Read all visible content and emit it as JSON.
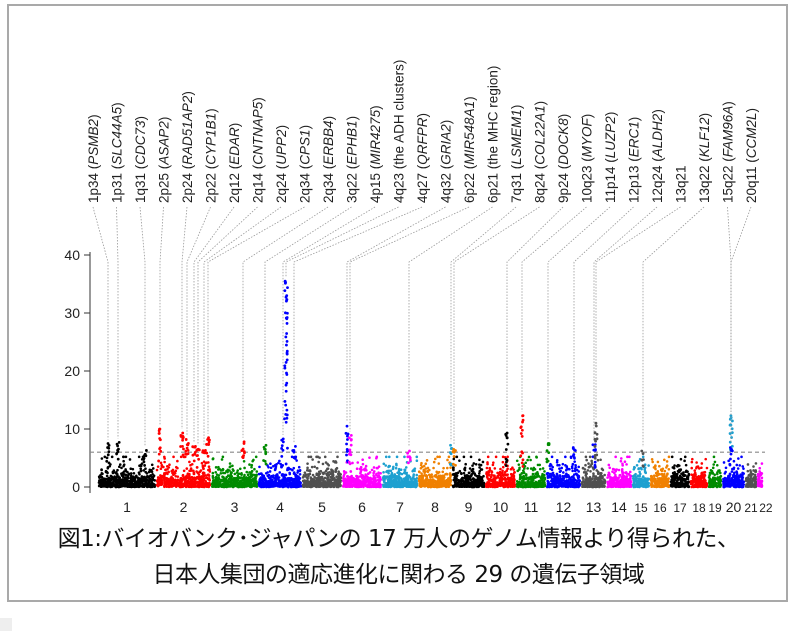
{
  "chart_data": {
    "type": "scatter",
    "subtype": "manhattan",
    "title": "",
    "xlabel": "",
    "ylabel": "",
    "ylim": [
      0,
      40
    ],
    "yticks": [
      0,
      10,
      20,
      30,
      40
    ],
    "threshold": 6,
    "grid": false,
    "chromosomes": [
      "1",
      "2",
      "3",
      "4",
      "5",
      "6",
      "7",
      "8",
      "9",
      "10",
      "11",
      "12",
      "13",
      "14",
      "15",
      "16",
      "17",
      "18",
      "19",
      "20",
      "21",
      "22"
    ],
    "chromosome_colors": [
      "#000000",
      "#ff0000",
      "#008b00",
      "#0000ff",
      "#505050",
      "#ff00ff",
      "#1ea0d0",
      "#f08000",
      "#000000",
      "#ff0000",
      "#008b00",
      "#0000ff",
      "#505050",
      "#ff00ff",
      "#1ea0d0",
      "#f08000",
      "#000000",
      "#ff0000",
      "#008b00",
      "#0000ff",
      "#505050",
      "#ff00ff"
    ],
    "loci": [
      {
        "band": "1p34",
        "gene": "PSMB2",
        "chr": "1",
        "peak": 7.5
      },
      {
        "band": "1p31",
        "gene": "SLC44A5",
        "chr": "1",
        "peak": 7.7
      },
      {
        "band": "1q31",
        "gene": "CDC73",
        "chr": "1",
        "peak": 6.3
      },
      {
        "band": "2p25",
        "gene": "ASAP2",
        "chr": "2",
        "peak": 10
      },
      {
        "band": "2p24",
        "gene": "RAD51AP2",
        "chr": "2",
        "peak": 9.3
      },
      {
        "band": "2p22",
        "gene": "CYP1B1",
        "chr": "2",
        "peak": 8.2
      },
      {
        "band": "2q12",
        "gene": "EDAR",
        "chr": "2",
        "peak": 7
      },
      {
        "band": "2q14",
        "gene": "CNTNAP5",
        "chr": "2",
        "peak": 6.5
      },
      {
        "band": "2q24",
        "gene": "UPP2",
        "chr": "2",
        "peak": 6.3
      },
      {
        "band": "2q34",
        "gene": "CPS1",
        "chr": "2",
        "peak": 8.5
      },
      {
        "band": "2q34",
        "gene": "ERBB4",
        "chr": "2",
        "peak": 7.8
      },
      {
        "band": "3q22",
        "gene": "EPHB1",
        "chr": "3",
        "peak": 7.2
      },
      {
        "band": "4p15",
        "gene": "MIR4275",
        "chr": "4",
        "peak": 8.3
      },
      {
        "band": "4q23",
        "note": "the ADH clusters",
        "chr": "4",
        "peak": 35.5
      },
      {
        "band": "4q27",
        "gene": "QRFPR",
        "chr": "4",
        "peak": 7
      },
      {
        "band": "4q32",
        "gene": "GRIA2",
        "chr": "4",
        "peak": 10.5
      },
      {
        "band": "6p22",
        "gene": "MIR548A1",
        "chr": "6",
        "peak": 8.9
      },
      {
        "band": "6p21",
        "note": "the MHC region",
        "chr": "6",
        "peak": 6.2
      },
      {
        "band": "7q31",
        "gene": "LSMEM1",
        "chr": "7",
        "peak": 7.2
      },
      {
        "band": "8q24",
        "gene": "COL22A1",
        "chr": "8",
        "peak": 6.5
      },
      {
        "band": "9p24",
        "gene": "DOCK8",
        "chr": "9",
        "peak": 9.3
      },
      {
        "band": "10q23",
        "gene": "MYOF",
        "chr": "10",
        "peak": 12.3
      },
      {
        "band": "11p14",
        "gene": "LUZP2",
        "chr": "11",
        "peak": 7.5
      },
      {
        "band": "12p13",
        "gene": "ERC1",
        "chr": "12",
        "peak": 6.8
      },
      {
        "band": "12q24",
        "gene": "ALDH2",
        "chr": "12",
        "peak": 7.3
      },
      {
        "band": "13q21",
        "chr": "13",
        "peak": 11
      },
      {
        "band": "13q22",
        "gene": "KLF12",
        "chr": "13",
        "peak": 6.2
      },
      {
        "band": "15q22",
        "gene": "FAM96A",
        "chr": "15",
        "peak": 12.3
      },
      {
        "band": "20q11",
        "gene": "CCM2L",
        "chr": "20",
        "peak": 6.8
      }
    ]
  },
  "caption": {
    "line1": "図1:バイオバンク･ジャパンの 17 万人のゲノム情報より得られた、",
    "line2": "日本人集団の適応進化に関わる 29 の遺伝子領域"
  }
}
